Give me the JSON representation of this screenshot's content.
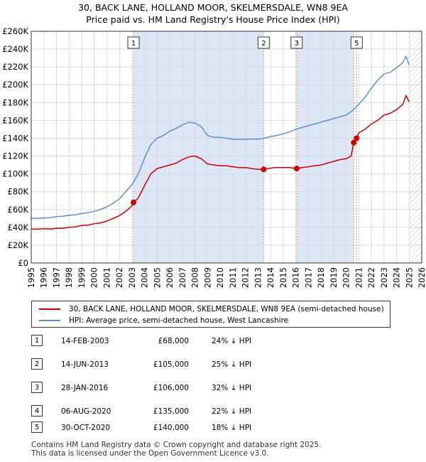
{
  "chart_data": {
    "type": "line",
    "title": "30, BACK LANE, HOLLAND MOOR, SKELMERSDALE, WN8 9EA",
    "subtitle": "Price paid vs. HM Land Registry's House Price Index (HPI)",
    "xlabel": "",
    "ylabel": "",
    "xlim": [
      1995,
      2026
    ],
    "ylim": [
      0,
      260000
    ],
    "xticks": [
      1995,
      1996,
      1997,
      1998,
      1999,
      2000,
      2001,
      2002,
      2003,
      2004,
      2005,
      2006,
      2007,
      2008,
      2009,
      2010,
      2011,
      2012,
      2013,
      2014,
      2015,
      2016,
      2017,
      2018,
      2019,
      2020,
      2021,
      2022,
      2023,
      2024,
      2025,
      2026
    ],
    "xtick_labels": [
      "1995",
      "1996",
      "1997",
      "1998",
      "1999",
      "2000",
      "2001",
      "2002",
      "2003",
      "2004",
      "2005",
      "2006",
      "2007",
      "2008",
      "2009",
      "2010",
      "2011",
      "2012",
      "2013",
      "2014",
      "2015",
      "2016",
      "2017",
      "2018",
      "2019",
      "2020",
      "2021",
      "2022",
      "2023",
      "2024",
      "2025",
      "2026"
    ],
    "yticks": [
      0,
      20000,
      40000,
      60000,
      80000,
      100000,
      120000,
      140000,
      160000,
      180000,
      200000,
      220000,
      240000,
      260000
    ],
    "ytick_labels": [
      "£0",
      "£20K",
      "£40K",
      "£60K",
      "£80K",
      "£100K",
      "£120K",
      "£140K",
      "£160K",
      "£180K",
      "£200K",
      "£220K",
      "£240K",
      "£260K"
    ],
    "grid": true,
    "colors": {
      "property": "#cc0000",
      "hpi": "#5b8fd4",
      "shade": "#dde6f7",
      "marker_line": "#e58a8a"
    },
    "series": [
      {
        "name": "30, BACK LANE, HOLLAND MOOR, SKELMERSDALE, WN8 9EA (semi-detached house)",
        "color": "#cc0000",
        "x": [
          1995.0,
          1995.5,
          1996.0,
          1996.5,
          1997.0,
          1997.5,
          1998.0,
          1998.5,
          1999.0,
          1999.5,
          2000.0,
          2000.5,
          2001.0,
          2001.5,
          2002.0,
          2002.5,
          2003.0,
          2003.12,
          2003.5,
          2004.0,
          2004.5,
          2005.0,
          2005.5,
          2006.0,
          2006.5,
          2007.0,
          2007.5,
          2008.0,
          2008.5,
          2009.0,
          2009.5,
          2010.0,
          2010.5,
          2011.0,
          2011.5,
          2012.0,
          2012.5,
          2013.0,
          2013.45,
          2013.8,
          2014.3,
          2015.0,
          2015.5,
          2016.07,
          2016.5,
          2017.0,
          2017.5,
          2018.0,
          2018.5,
          2019.0,
          2019.5,
          2020.0,
          2020.4,
          2020.6,
          2020.83,
          2021.0,
          2021.5,
          2022.0,
          2022.5,
          2023.0,
          2023.5,
          2024.0,
          2024.5,
          2024.75,
          2025.0
        ],
        "values": [
          38000,
          38000,
          38500,
          38000,
          39000,
          39000,
          40000,
          40500,
          42000,
          42500,
          44000,
          45000,
          47000,
          50000,
          53000,
          58000,
          64000,
          68000,
          73000,
          87000,
          100000,
          106000,
          108000,
          110000,
          112000,
          116000,
          119000,
          120000,
          117000,
          111000,
          110000,
          109000,
          109000,
          108000,
          107000,
          107000,
          106000,
          105000,
          105000,
          106000,
          107000,
          107000,
          107000,
          106000,
          107000,
          108000,
          109000,
          110000,
          112000,
          114000,
          116000,
          117000,
          120000,
          135000,
          140000,
          146000,
          150000,
          156000,
          160000,
          166000,
          168000,
          172000,
          178000,
          188000,
          181000
        ]
      },
      {
        "name": "HPI: Average price, semi-detached house, West Lancashire",
        "color": "#5b8fd4",
        "x": [
          1995.0,
          1995.5,
          1996.0,
          1996.5,
          1997.0,
          1997.5,
          1998.0,
          1998.5,
          1999.0,
          1999.5,
          2000.0,
          2000.5,
          2001.0,
          2001.5,
          2002.0,
          2002.5,
          2003.0,
          2003.5,
          2004.0,
          2004.5,
          2005.0,
          2005.5,
          2006.0,
          2006.5,
          2007.0,
          2007.5,
          2008.0,
          2008.5,
          2009.0,
          2009.5,
          2010.0,
          2010.5,
          2011.0,
          2011.5,
          2012.0,
          2012.5,
          2013.0,
          2013.5,
          2014.0,
          2014.5,
          2015.0,
          2015.5,
          2016.0,
          2016.5,
          2017.0,
          2017.5,
          2018.0,
          2018.5,
          2019.0,
          2019.5,
          2020.0,
          2020.5,
          2021.0,
          2021.5,
          2022.0,
          2022.5,
          2023.0,
          2023.5,
          2024.0,
          2024.5,
          2024.75,
          2025.0
        ],
        "values": [
          50000,
          50000,
          50500,
          51000,
          52000,
          52500,
          53500,
          54000,
          55500,
          56500,
          58000,
          60000,
          63000,
          67000,
          72000,
          80000,
          88000,
          100000,
          118000,
          133000,
          140000,
          143000,
          148000,
          151000,
          155000,
          158000,
          157000,
          153000,
          143000,
          141000,
          141000,
          140000,
          139000,
          138500,
          139000,
          139000,
          139000,
          140000,
          142000,
          143000,
          145000,
          147000,
          150000,
          152000,
          154000,
          156000,
          158000,
          160000,
          162000,
          164000,
          166000,
          171000,
          178000,
          186000,
          196000,
          205000,
          212000,
          214000,
          219000,
          225000,
          232000,
          222000
        ]
      }
    ],
    "sales": [
      {
        "num": "1",
        "x": 2003.12,
        "value": 68000
      },
      {
        "num": "2",
        "x": 2013.45,
        "value": 105000
      },
      {
        "num": "3",
        "x": 2016.07,
        "value": 106000
      },
      {
        "num": "4",
        "x": 2020.6,
        "value": 135000
      },
      {
        "num": "5",
        "x": 2020.83,
        "value": 140000
      }
    ],
    "shade_ranges": [
      [
        2003.12,
        2013.45
      ],
      [
        2016.07,
        2020.6
      ]
    ],
    "future_hatch_from": 2025.0,
    "legend_position": "below"
  },
  "legend": {
    "property_label": "30, BACK LANE, HOLLAND MOOR, SKELMERSDALE, WN8 9EA (semi-detached house)",
    "hpi_label": "HPI: Average price, semi-detached house, West Lancashire"
  },
  "transactions": [
    {
      "num": "1",
      "date": "14-FEB-2003",
      "price": "£68,000",
      "hpi": "24% ↓ HPI"
    },
    {
      "num": "2",
      "date": "14-JUN-2013",
      "price": "£105,000",
      "hpi": "25% ↓ HPI"
    },
    {
      "num": "3",
      "date": "28-JAN-2016",
      "price": "£106,000",
      "hpi": "32% ↓ HPI"
    },
    {
      "num": "4",
      "date": "06-AUG-2020",
      "price": "£135,000",
      "hpi": "22% ↓ HPI"
    },
    {
      "num": "5",
      "date": "30-OCT-2020",
      "price": "£140,000",
      "hpi": "18% ↓ HPI"
    }
  ],
  "footer": {
    "line1": "Contains HM Land Registry data © Crown copyright and database right 2025.",
    "line2": "This data is licensed under the Open Government Licence v3.0."
  }
}
